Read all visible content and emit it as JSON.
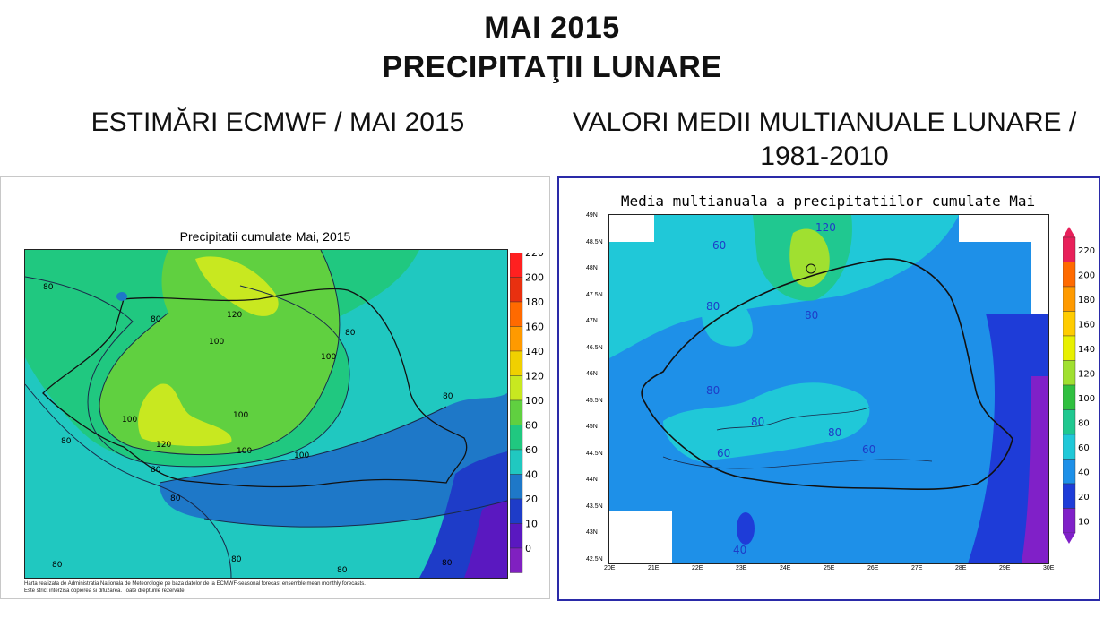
{
  "header": {
    "title_line1": "MAI 2015",
    "title_line2": "PRECIPITAŢII LUNARE"
  },
  "left": {
    "subtitle": "ESTIMĂRI ECMWF / MAI 2015",
    "map_title": "Precipitatii cumulate Mai, 2015",
    "credit_line1": "Harta realizata de Administratia Nationala de Meteorologie pe baza datelor de la ECMWF-seasonal forecast ensemble mean monthly forecasts.",
    "credit_line2": "Este strict interzisa copierea si difuzarea. Toate drepturile rezervate.",
    "contour_labels": [
      "80",
      "80",
      "100",
      "120",
      "100",
      "100",
      "100",
      "80",
      "100",
      "120",
      "100",
      "80",
      "80",
      "80",
      "80",
      "80",
      "80",
      "80",
      "80"
    ],
    "legend_ticks": [
      "220",
      "200",
      "180",
      "160",
      "140",
      "120",
      "100",
      "80",
      "60",
      "40",
      "20",
      "10",
      "0"
    ],
    "legend_colors": [
      "#ff2020",
      "#e83010",
      "#ff6a00",
      "#ff9a00",
      "#f0d000",
      "#c8e820",
      "#60d040",
      "#20c880",
      "#20c8c0",
      "#1e78c8",
      "#1e3cc8",
      "#5a18c0",
      "#8020c0"
    ]
  },
  "right": {
    "subtitle_line1": "VALORI MEDII MULTIANUALE LUNARE /",
    "subtitle_line2": "1981-2010",
    "map_title": "Media multianuala a precipitatiilor cumulate Mai",
    "contour_labels": [
      "120",
      "60",
      "80",
      "80",
      "80",
      "80",
      "80",
      "80",
      "60",
      "60",
      "40"
    ],
    "legend_ticks": [
      "220",
      "200",
      "180",
      "160",
      "140",
      "120",
      "100",
      "80",
      "60",
      "40",
      "20",
      "10"
    ],
    "legend_colors": [
      "#e8205a",
      "#ff6a00",
      "#ff9a00",
      "#ffcc00",
      "#e8f000",
      "#a0e030",
      "#30c040",
      "#20c890",
      "#20c8d8",
      "#1e90e8",
      "#1e3cd8",
      "#8020c8"
    ],
    "lat_ticks": [
      "49N",
      "48.5N",
      "48N",
      "47.5N",
      "47N",
      "46.5N",
      "46N",
      "45.5N",
      "45N",
      "44.5N",
      "44N",
      "43.5N",
      "43N",
      "42.5N"
    ],
    "lon_ticks": [
      "20E",
      "21E",
      "22E",
      "23E",
      "24E",
      "25E",
      "26E",
      "27E",
      "28E",
      "29E",
      "30E"
    ]
  }
}
